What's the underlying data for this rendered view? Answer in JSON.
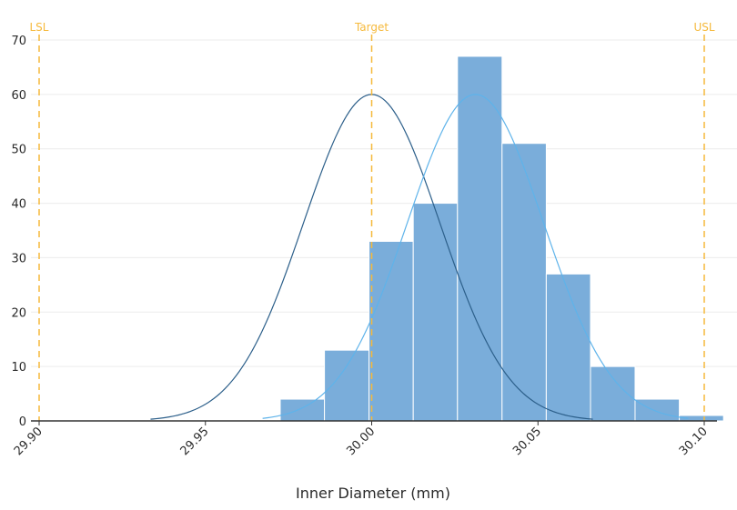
{
  "chart_data": {
    "type": "bar",
    "title": "",
    "xlabel": "Inner Diameter (mm)",
    "ylabel": "",
    "xlim": [
      29.9,
      30.104
    ],
    "ylim": [
      0,
      70
    ],
    "x_ticks": [
      "29.90",
      "29.95",
      "30.00",
      "30.05",
      "30.10"
    ],
    "y_ticks": [
      "0",
      "10",
      "20",
      "30",
      "40",
      "50",
      "60",
      "70"
    ],
    "grid": true,
    "bins": [
      {
        "x0": 29.9725,
        "x1": 29.9858,
        "count": 4
      },
      {
        "x0": 29.9858,
        "x1": 29.9992,
        "count": 13
      },
      {
        "x0": 29.9992,
        "x1": 30.0125,
        "count": 33
      },
      {
        "x0": 30.0125,
        "x1": 30.0258,
        "count": 40
      },
      {
        "x0": 30.0258,
        "x1": 30.0392,
        "count": 67
      },
      {
        "x0": 30.0392,
        "x1": 30.0525,
        "count": 51
      },
      {
        "x0": 30.0525,
        "x1": 30.0658,
        "count": 27
      },
      {
        "x0": 30.0658,
        "x1": 30.0792,
        "count": 10
      },
      {
        "x0": 30.0792,
        "x1": 30.0925,
        "count": 4
      },
      {
        "x0": 30.0925,
        "x1": 30.1058,
        "count": 1
      }
    ],
    "curves": [
      {
        "mean": 30.0,
        "sd": 0.0205,
        "peak": 60,
        "x_from": 29.9335,
        "x_to": 30.0665,
        "color": "#2c5f8a"
      },
      {
        "mean": 30.0312,
        "sd": 0.0205,
        "peak": 60,
        "x_from": 29.9672,
        "x_to": 30.0952,
        "color": "#5eb3ea"
      }
    ],
    "spec_lines": [
      {
        "label": "LSL",
        "x": 29.9
      },
      {
        "label": "Target",
        "x": 30.0
      },
      {
        "label": "USL",
        "x": 30.1
      }
    ],
    "colors": {
      "bar_fill": "#7aadda",
      "bar_stroke": "#ffffff",
      "spec_line": "#f6b93b",
      "grid": "#ececec",
      "baseline": "#333333",
      "text": "#2a2a2a"
    }
  }
}
